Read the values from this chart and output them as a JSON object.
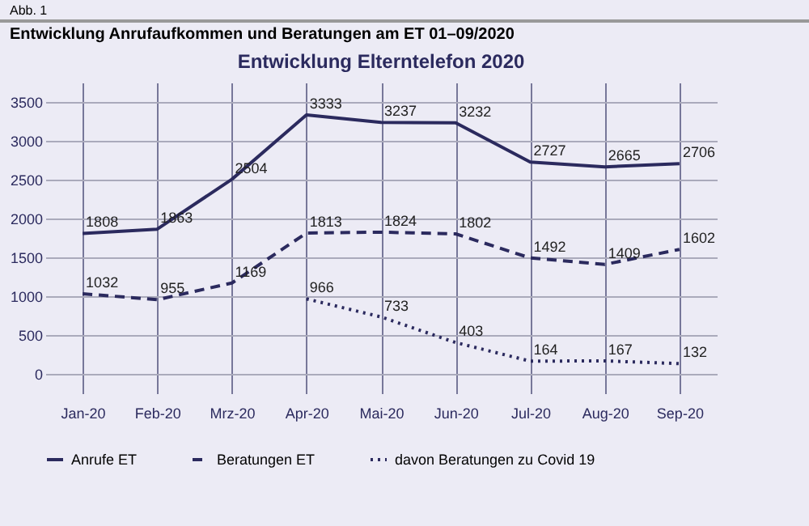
{
  "chart_data": {
    "type": "line",
    "title": "Entwicklung Elterntelefon 2020",
    "annotations": [
      "Abb. 1",
      "Entwicklung Anrufaufkommen und Beratungen am ET 01–09/2020"
    ],
    "categories": [
      "Jan-20",
      "Feb-20",
      "Mrz-20",
      "Apr-20",
      "Mai-20",
      "Jun-20",
      "Jul-20",
      "Aug-20",
      "Sep-20"
    ],
    "series": [
      {
        "name": "Anrufe ET",
        "color": "#2b2a5e",
        "line_style": "solid",
        "values": [
          1808,
          1863,
          2504,
          3333,
          3237,
          3232,
          2727,
          2665,
          2706
        ]
      },
      {
        "name": "Beratungen ET",
        "color": "#2b2a5e",
        "line_style": "dashed",
        "values": [
          1032,
          955,
          1169,
          1813,
          1824,
          1802,
          1492,
          1409,
          1602
        ]
      },
      {
        "name": "davon Beratungen zu Covid 19",
        "color": "#2b2a5e",
        "line_style": "dotted",
        "values": [
          null,
          null,
          null,
          966,
          733,
          403,
          164,
          167,
          132
        ]
      }
    ],
    "ylim": [
      -250,
      3750
    ],
    "yticks": [
      0,
      500,
      1000,
      1500,
      2000,
      2500,
      3000,
      3500
    ],
    "grid": true,
    "legend": "bottom",
    "data_labels": true,
    "marker": "none"
  }
}
